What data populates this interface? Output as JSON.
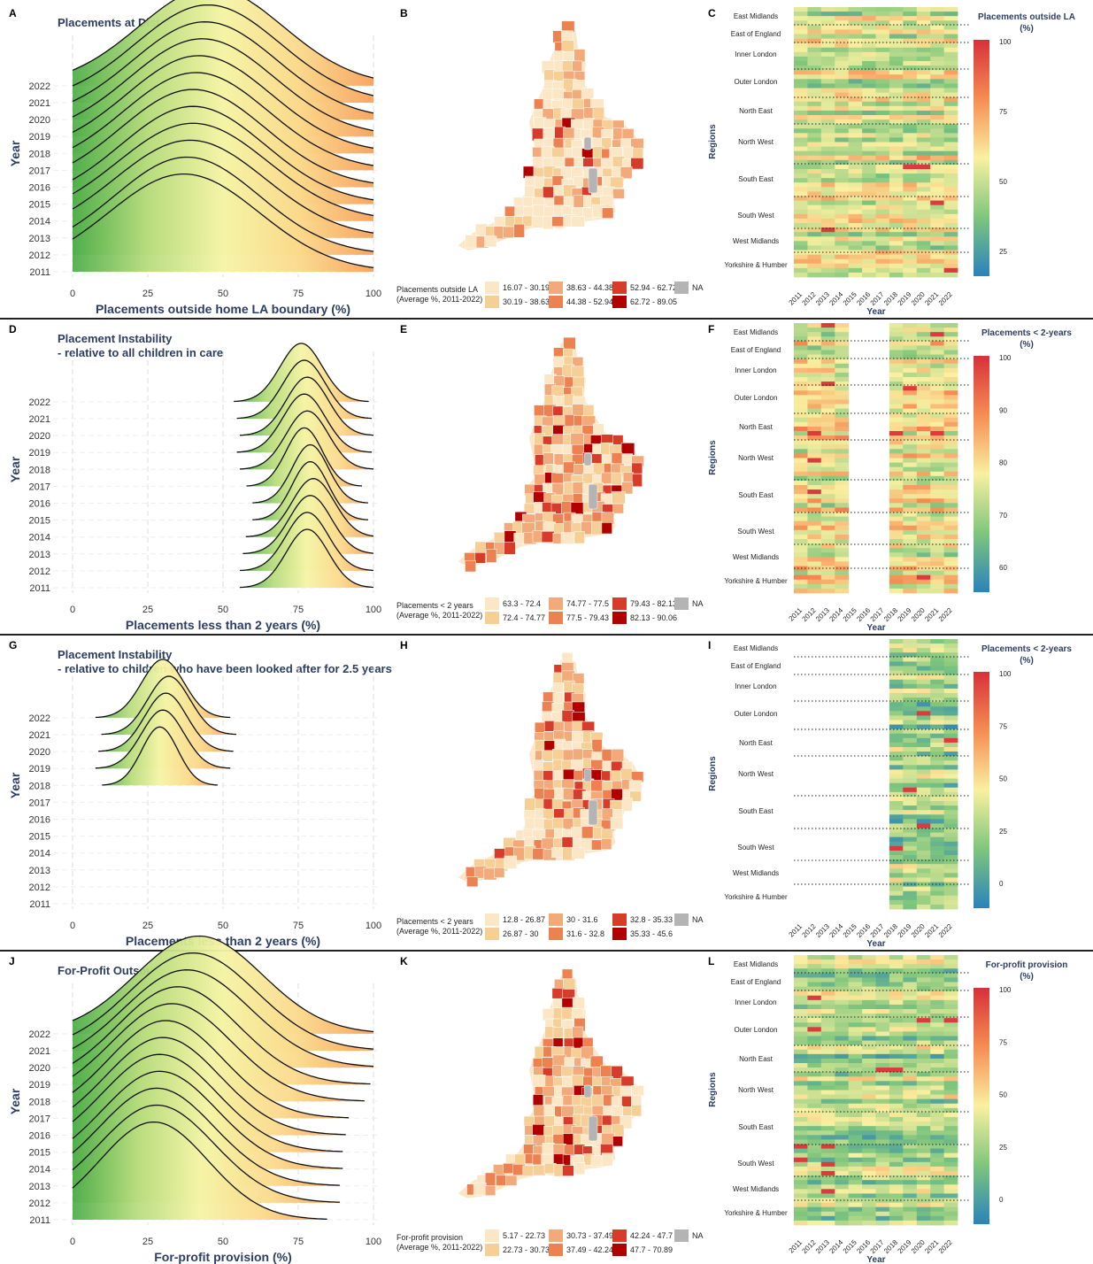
{
  "years": [
    "2011",
    "2012",
    "2013",
    "2014",
    "2015",
    "2016",
    "2017",
    "2018",
    "2019",
    "2020",
    "2021",
    "2022"
  ],
  "x_ticks": [
    "0",
    "25",
    "50",
    "75",
    "100"
  ],
  "y_axis_label": "Year",
  "regions": [
    "East Midlands",
    "East of England",
    "Inner London",
    "Outer London",
    "North East",
    "North West",
    "South East",
    "South West",
    "West Midlands",
    "Yorkshire & Humber"
  ],
  "heatmap_x_label": "Year",
  "heatmap_y_label": "Regions",
  "legend_sub": "(Average %, 2011-2022)",
  "na_label": "NA",
  "map_colors": [
    "#fbe6c5",
    "#f6cf96",
    "#f3aa7a",
    "#ec8151",
    "#d73c2a",
    "#b00000"
  ],
  "chart_data": [
    {
      "type": "ridgeline",
      "panel": "A",
      "title": "Placements at Distance",
      "xlabel": "Placements outside home LA boundary (%)",
      "ylabel": "Year",
      "xlim": [
        0,
        100
      ],
      "series": [
        {
          "year": "2011",
          "mean": 37,
          "sd": 25
        },
        {
          "year": "2012",
          "mean": 38,
          "sd": 24
        },
        {
          "year": "2013",
          "mean": 39,
          "sd": 25
        },
        {
          "year": "2014",
          "mean": 40,
          "sd": 25
        },
        {
          "year": "2015",
          "mean": 40,
          "sd": 24
        },
        {
          "year": "2016",
          "mean": 40,
          "sd": 24
        },
        {
          "year": "2017",
          "mean": 41,
          "sd": 24
        },
        {
          "year": "2018",
          "mean": 42,
          "sd": 24
        },
        {
          "year": "2019",
          "mean": 43,
          "sd": 24
        },
        {
          "year": "2020",
          "mean": 44,
          "sd": 24
        },
        {
          "year": "2021",
          "mean": 45,
          "sd": 24
        },
        {
          "year": "2022",
          "mean": 46,
          "sd": 24
        }
      ]
    },
    {
      "type": "choropleth",
      "panel": "B",
      "legend_title": "Placements outside LA",
      "bins": [
        "16.07 - 30.19",
        "30.19 - 38.63",
        "38.63 - 44.38",
        "44.38 - 52.94",
        "52.94 - 62.72",
        "62.72 - 89.05"
      ]
    },
    {
      "type": "heatmap",
      "panel": "C",
      "legend_title": "Placements outside LA (%)",
      "legend_ticks": [
        "100",
        "75",
        "50",
        "25"
      ],
      "missing_years": [],
      "base": 0.45
    },
    {
      "type": "ridgeline",
      "panel": "D",
      "title": "Placement Instability",
      "subtitle": " - relative to all children in care",
      "xlabel": "Placements less than 2 years (%)",
      "ylabel": "Year",
      "xlim": [
        0,
        100
      ],
      "series": [
        {
          "year": "2011",
          "mean": 78,
          "sd": 7
        },
        {
          "year": "2012",
          "mean": 78,
          "sd": 7
        },
        {
          "year": "2013",
          "mean": 79,
          "sd": 7
        },
        {
          "year": "2014",
          "mean": 80,
          "sd": 7
        },
        {
          "year": "2015",
          "mean": 79,
          "sd": 6
        },
        {
          "year": "2016",
          "mean": 79,
          "sd": 6
        },
        {
          "year": "2017",
          "mean": 77,
          "sd": 6
        },
        {
          "year": "2018",
          "mean": 78,
          "sd": 7
        },
        {
          "year": "2019",
          "mean": 77,
          "sd": 7
        },
        {
          "year": "2020",
          "mean": 78,
          "sd": 7
        },
        {
          "year": "2021",
          "mean": 77,
          "sd": 7
        },
        {
          "year": "2022",
          "mean": 76,
          "sd": 7
        }
      ],
      "missing_years": []
    },
    {
      "type": "choropleth",
      "panel": "E",
      "legend_title": "Placements < 2 years",
      "bins": [
        "63.3 - 72.4",
        "72.4 - 74.77",
        "74.77 - 77.5",
        "77.5 - 79.43",
        "79.43 - 82.13",
        "82.13 - 90.06"
      ]
    },
    {
      "type": "heatmap",
      "panel": "F",
      "legend_title": "Placements < 2-years (%)",
      "legend_ticks": [
        "100",
        "90",
        "80",
        "70",
        "60"
      ],
      "missing_years": [
        "2015",
        "2016",
        "2017"
      ],
      "base": 0.5
    },
    {
      "type": "ridgeline",
      "panel": "G",
      "title": "Placement Instability",
      "subtitle": " - relative to children who have been looked after for 2.5 years",
      "xlabel": "Placements less than 2 years (%)",
      "ylabel": "Year",
      "xlim": [
        0,
        100
      ],
      "series": [
        {
          "year": "2018",
          "mean": 29,
          "sd": 6
        },
        {
          "year": "2019",
          "mean": 30,
          "sd": 7
        },
        {
          "year": "2020",
          "mean": 31,
          "sd": 7
        },
        {
          "year": "2021",
          "mean": 32,
          "sd": 7
        },
        {
          "year": "2022",
          "mean": 30,
          "sd": 7
        }
      ],
      "empty_years": [
        "2011",
        "2012",
        "2013",
        "2014",
        "2015",
        "2016",
        "2017"
      ]
    },
    {
      "type": "choropleth",
      "panel": "H",
      "legend_title": "Placements < 2 years",
      "bins": [
        "12.8 - 26.87",
        "26.87 - 30",
        "30 - 31.6",
        "31.6 - 32.8",
        "32.8 - 35.33",
        "35.33 - 45.6"
      ]
    },
    {
      "type": "heatmap",
      "panel": "I",
      "legend_title": "Placements < 2-years (%)",
      "legend_ticks": [
        "100",
        "75",
        "50",
        "25",
        "0"
      ],
      "missing_years": [
        "2011",
        "2012",
        "2013",
        "2014",
        "2015",
        "2016",
        "2017"
      ],
      "base": 0.32
    },
    {
      "type": "ridgeline",
      "panel": "J",
      "title": "For-Profit Outsourcing",
      "xlabel": "For-profit provision (%)",
      "ylabel": "Year",
      "xlim": [
        0,
        100
      ],
      "series": [
        {
          "year": "2011",
          "mean": 27,
          "sd": 18
        },
        {
          "year": "2012",
          "mean": 28,
          "sd": 19
        },
        {
          "year": "2013",
          "mean": 28,
          "sd": 19
        },
        {
          "year": "2014",
          "mean": 29,
          "sd": 19
        },
        {
          "year": "2015",
          "mean": 29,
          "sd": 19
        },
        {
          "year": "2016",
          "mean": 30,
          "sd": 19
        },
        {
          "year": "2017",
          "mean": 31,
          "sd": 19
        },
        {
          "year": "2018",
          "mean": 33,
          "sd": 20
        },
        {
          "year": "2019",
          "mean": 35,
          "sd": 20
        },
        {
          "year": "2020",
          "mean": 38,
          "sd": 21
        },
        {
          "year": "2021",
          "mean": 40,
          "sd": 21
        },
        {
          "year": "2022",
          "mean": 42,
          "sd": 21
        }
      ]
    },
    {
      "type": "choropleth",
      "panel": "K",
      "legend_title": "For-profit provision",
      "bins": [
        "5.17 - 22.73",
        "22.73 - 30.73",
        "30.73 - 37.49",
        "37.49 - 42.24",
        "42.24 - 47.7",
        "47.7 - 70.89"
      ]
    },
    {
      "type": "heatmap",
      "panel": "L",
      "legend_title": "For-profit provision (%)",
      "legend_ticks": [
        "100",
        "75",
        "50",
        "25",
        "0"
      ],
      "missing_years": [],
      "base": 0.35
    }
  ]
}
